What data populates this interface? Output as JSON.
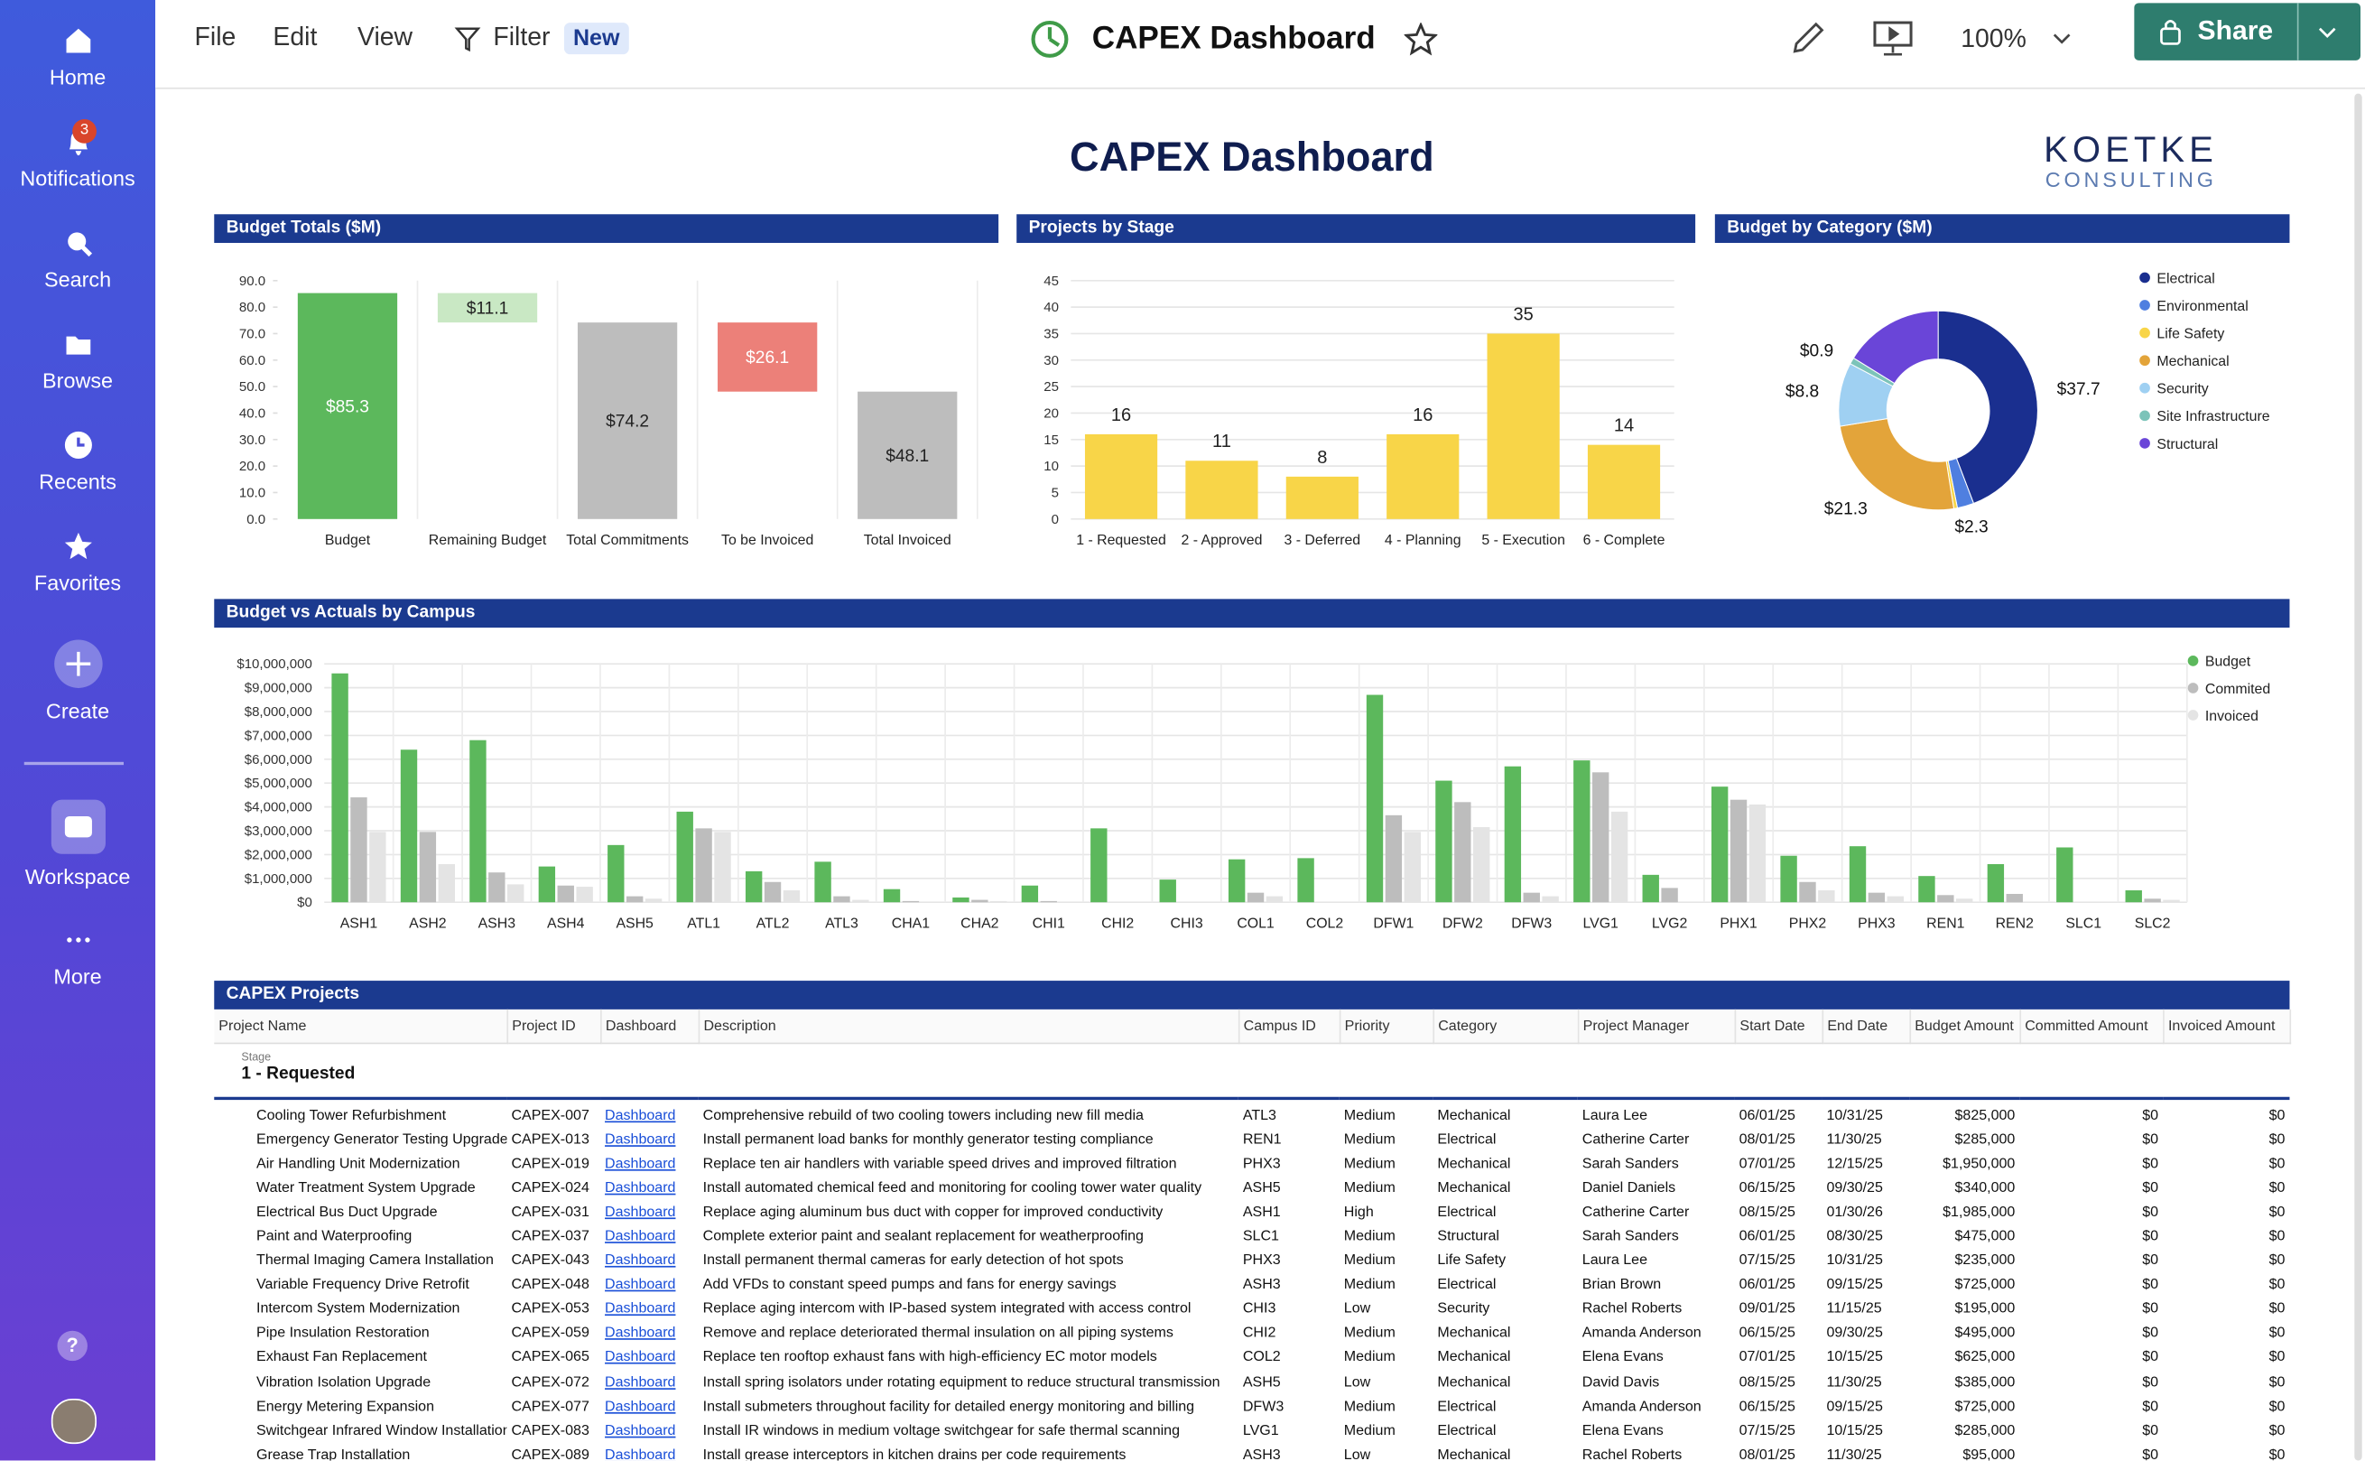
{
  "sidebar": {
    "items": [
      "Home",
      "Notifications",
      "Search",
      "Browse",
      "Recents",
      "Favorites",
      "Create",
      "Workspace",
      "More"
    ],
    "notification_count": 3,
    "help": "?"
  },
  "toolbar": {
    "menu": [
      "File",
      "Edit",
      "View",
      "Filter"
    ],
    "badge": "New",
    "title": "CAPEX Dashboard",
    "zoom": "100%",
    "share": "Share"
  },
  "dashboard": {
    "title": "CAPEX Dashboard",
    "logo": "KOETKE",
    "logo_sub": "CONSULTING"
  },
  "chart_data": [
    {
      "type": "waterfall",
      "title": "Budget Totals ($M)",
      "categories": [
        "Budget",
        "Remaining Budget",
        "Total Commitments",
        "To be Invoiced",
        "Total Invoiced"
      ],
      "values": [
        85.3,
        11.1,
        74.2,
        26.1,
        48.1
      ],
      "value_labels": [
        "$85.3",
        "$11.1",
        "$74.2",
        "$26.1",
        "$48.1"
      ],
      "measure": [
        "total",
        "decrease",
        "total",
        "decrease",
        "total"
      ],
      "colors": [
        "#5cb85c",
        "#c9e8c4",
        "#bdbdbd",
        "#ec8079",
        "#bdbdbd"
      ],
      "ylim": [
        0,
        90
      ],
      "yticks": [
        {
          "value": 0,
          "label": "0.0"
        },
        {
          "value": 10,
          "label": "10.0"
        },
        {
          "value": 20,
          "label": "20.0"
        },
        {
          "value": 30,
          "label": "30.0"
        },
        {
          "value": 40,
          "label": "40.0"
        },
        {
          "value": 50,
          "label": "50.0"
        },
        {
          "value": 60,
          "label": "60.0"
        },
        {
          "value": 70,
          "label": "70.0"
        },
        {
          "value": 80,
          "label": "80.0"
        },
        {
          "value": 90,
          "label": "90.0"
        }
      ],
      "grid": "x"
    },
    {
      "type": "bar",
      "title": "Projects by Stage",
      "categories": [
        "1 - Requested",
        "2 - Approved",
        "3 - Deferred",
        "4 - Planning",
        "5 - Execution",
        "6 - Complete"
      ],
      "values": [
        16,
        11,
        8,
        16,
        35,
        14
      ],
      "color": "#f8d548",
      "ylim": [
        0,
        45
      ],
      "yticks": [
        0,
        5,
        10,
        15,
        20,
        25,
        30,
        35,
        40,
        45
      ],
      "grid": "y",
      "show_values": true
    },
    {
      "type": "donut",
      "title": "Budget by Category ($M)",
      "categories": [
        "Electrical",
        "Environmental",
        "Life Safety",
        "Mechanical",
        "Security",
        "Site Infrastructure",
        "Structural"
      ],
      "values": [
        37.7,
        2.3,
        0.5,
        21.3,
        8.8,
        0.9,
        13.8
      ],
      "value_labels": [
        "$37.7",
        "$2.3",
        null,
        "$21.3",
        "$8.8",
        "$0.9",
        null
      ],
      "colors": [
        "#1a2f8f",
        "#4f7fe0",
        "#f8d548",
        "#e3a43a",
        "#9fd0f2",
        "#7cc3b9",
        "#6a45d8"
      ],
      "legend": "right"
    },
    {
      "type": "grouped-bar",
      "title": "Budget vs Actuals by Campus",
      "categories": [
        "ASH1",
        "ASH2",
        "ASH3",
        "ASH4",
        "ASH5",
        "ATL1",
        "ATL2",
        "ATL3",
        "CHA1",
        "CHA2",
        "CHI1",
        "CHI2",
        "CHI3",
        "COL1",
        "COL2",
        "DFW1",
        "DFW2",
        "DFW3",
        "LVG1",
        "LVG2",
        "PHX1",
        "PHX2",
        "PHX3",
        "REN1",
        "REN2",
        "SLC1",
        "SLC2"
      ],
      "series": [
        {
          "name": "Budget",
          "color": "#5cb85c",
          "values": [
            9600000,
            6400000,
            6800000,
            1500000,
            2400000,
            3800000,
            1300000,
            1700000,
            550000,
            200000,
            700000,
            3100000,
            950000,
            1800000,
            1850000,
            8700000,
            5100000,
            5700000,
            5950000,
            1150000,
            4850000,
            1950000,
            2350000,
            1100000,
            1600000,
            2300000,
            500000
          ]
        },
        {
          "name": "Commited",
          "color": "#bdbdbd",
          "values": [
            4400000,
            2950000,
            1250000,
            700000,
            250000,
            3100000,
            850000,
            250000,
            50000,
            100000,
            50000,
            0,
            0,
            400000,
            0,
            3650000,
            4200000,
            400000,
            5450000,
            600000,
            4300000,
            850000,
            400000,
            300000,
            350000,
            0,
            150000
          ]
        },
        {
          "name": "Invoiced",
          "color": "#e4e4e4",
          "values": [
            2950000,
            1600000,
            750000,
            650000,
            150000,
            2950000,
            500000,
            100000,
            0,
            50000,
            0,
            0,
            0,
            250000,
            0,
            2950000,
            3150000,
            250000,
            3800000,
            0,
            4100000,
            500000,
            250000,
            150000,
            0,
            0,
            100000
          ]
        }
      ],
      "ylim": [
        0,
        10000000
      ],
      "yticks": [
        {
          "value": 0,
          "label": "$0"
        },
        {
          "value": 1000000,
          "label": "$1,000,000"
        },
        {
          "value": 2000000,
          "label": "$2,000,000"
        },
        {
          "value": 3000000,
          "label": "$3,000,000"
        },
        {
          "value": 4000000,
          "label": "$4,000,000"
        },
        {
          "value": 5000000,
          "label": "$5,000,000"
        },
        {
          "value": 6000000,
          "label": "$6,000,000"
        },
        {
          "value": 7000000,
          "label": "$7,000,000"
        },
        {
          "value": 8000000,
          "label": "$8,000,000"
        },
        {
          "value": 9000000,
          "label": "$9,000,000"
        },
        {
          "value": 10000000,
          "label": "$10,000,000"
        }
      ],
      "grid": "both",
      "legend": "right"
    }
  ],
  "table": {
    "title": "CAPEX Projects",
    "columns": [
      "Project Name",
      "Project ID",
      "Dashboard",
      "Description",
      "Campus ID",
      "Priority",
      "Category",
      "Project Manager",
      "Start Date",
      "End Date",
      "Budget Amount",
      "Committed Amount",
      "Invoiced Amount"
    ],
    "group_label": "Stage",
    "group": "1 - Requested",
    "rows": [
      [
        "Cooling Tower Refurbishment",
        "CAPEX-007",
        "Dashboard",
        "Comprehensive rebuild of two cooling towers including new fill media",
        "ATL3",
        "Medium",
        "Mechanical",
        "Laura Lee",
        "06/01/25",
        "10/31/25",
        "$825,000",
        "$0",
        "$0"
      ],
      [
        "Emergency Generator Testing Upgrade",
        "CAPEX-013",
        "Dashboard",
        "Install permanent load banks for monthly generator testing compliance",
        "REN1",
        "Medium",
        "Electrical",
        "Catherine Carter",
        "08/01/25",
        "11/30/25",
        "$285,000",
        "$0",
        "$0"
      ],
      [
        "Air Handling Unit Modernization",
        "CAPEX-019",
        "Dashboard",
        "Replace ten air handlers with variable speed drives and improved filtration",
        "PHX3",
        "Medium",
        "Mechanical",
        "Sarah Sanders",
        "07/01/25",
        "12/15/25",
        "$1,950,000",
        "$0",
        "$0"
      ],
      [
        "Water Treatment System Upgrade",
        "CAPEX-024",
        "Dashboard",
        "Install automated chemical feed and monitoring for cooling tower water quality",
        "ASH5",
        "Medium",
        "Mechanical",
        "Daniel Daniels",
        "06/15/25",
        "09/30/25",
        "$340,000",
        "$0",
        "$0"
      ],
      [
        "Electrical Bus Duct Upgrade",
        "CAPEX-031",
        "Dashboard",
        "Replace aging aluminum bus duct with copper for improved conductivity",
        "ASH1",
        "High",
        "Electrical",
        "Catherine Carter",
        "08/15/25",
        "01/30/26",
        "$1,985,000",
        "$0",
        "$0"
      ],
      [
        "Paint and Waterproofing",
        "CAPEX-037",
        "Dashboard",
        "Complete exterior paint and sealant replacement for weatherproofing",
        "SLC1",
        "Medium",
        "Structural",
        "Sarah Sanders",
        "06/01/25",
        "08/30/25",
        "$475,000",
        "$0",
        "$0"
      ],
      [
        "Thermal Imaging Camera Installation",
        "CAPEX-043",
        "Dashboard",
        "Install permanent thermal cameras for early detection of hot spots",
        "PHX3",
        "Medium",
        "Life Safety",
        "Laura Lee",
        "07/15/25",
        "10/31/25",
        "$235,000",
        "$0",
        "$0"
      ],
      [
        "Variable Frequency Drive Retrofit",
        "CAPEX-048",
        "Dashboard",
        "Add VFDs to constant speed pumps and fans for energy savings",
        "ASH3",
        "Medium",
        "Electrical",
        "Brian Brown",
        "06/01/25",
        "09/15/25",
        "$725,000",
        "$0",
        "$0"
      ],
      [
        "Intercom System Modernization",
        "CAPEX-053",
        "Dashboard",
        "Replace aging intercom with IP-based system integrated with access control",
        "CHI3",
        "Low",
        "Security",
        "Rachel Roberts",
        "09/01/25",
        "11/15/25",
        "$195,000",
        "$0",
        "$0"
      ],
      [
        "Pipe Insulation Restoration",
        "CAPEX-059",
        "Dashboard",
        "Remove and replace deteriorated thermal insulation on all piping systems",
        "CHI2",
        "Medium",
        "Mechanical",
        "Amanda Anderson",
        "06/15/25",
        "09/30/25",
        "$495,000",
        "$0",
        "$0"
      ],
      [
        "Exhaust Fan Replacement",
        "CAPEX-065",
        "Dashboard",
        "Replace ten rooftop exhaust fans with high-efficiency EC motor models",
        "COL2",
        "Medium",
        "Mechanical",
        "Elena Evans",
        "07/01/25",
        "10/15/25",
        "$625,000",
        "$0",
        "$0"
      ],
      [
        "Vibration Isolation Upgrade",
        "CAPEX-072",
        "Dashboard",
        "Install spring isolators under rotating equipment to reduce structural transmission",
        "ASH5",
        "Low",
        "Mechanical",
        "David Davis",
        "08/15/25",
        "11/30/25",
        "$385,000",
        "$0",
        "$0"
      ],
      [
        "Energy Metering Expansion",
        "CAPEX-077",
        "Dashboard",
        "Install submeters throughout facility for detailed energy monitoring and billing",
        "DFW3",
        "Medium",
        "Electrical",
        "Amanda Anderson",
        "06/15/25",
        "09/15/25",
        "$725,000",
        "$0",
        "$0"
      ],
      [
        "Switchgear Infrared Window Installation",
        "CAPEX-083",
        "Dashboard",
        "Install IR windows in medium voltage switchgear for safe thermal scanning",
        "LVG1",
        "Medium",
        "Electrical",
        "Elena Evans",
        "07/15/25",
        "10/15/25",
        "$285,000",
        "$0",
        "$0"
      ],
      [
        "Grease Trap Installation",
        "CAPEX-089",
        "Dashboard",
        "Install grease interceptors in kitchen drains per code requirements",
        "ASH3",
        "Low",
        "Mechanical",
        "Rachel Roberts",
        "08/01/25",
        "11/30/25",
        "$95,000",
        "$0",
        "$0"
      ]
    ]
  }
}
